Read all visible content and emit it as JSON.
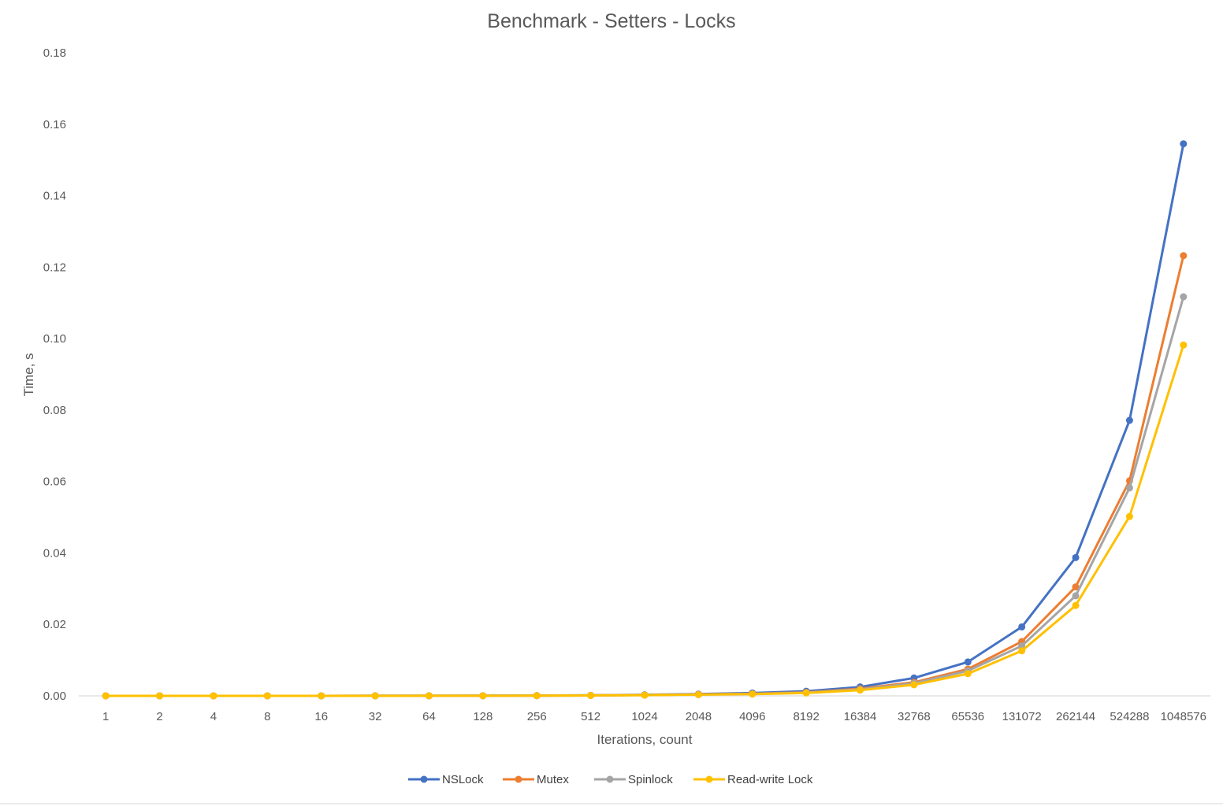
{
  "chart_data": {
    "type": "line",
    "title": "Benchmark - Setters - Locks",
    "xlabel": "Iterations, count",
    "ylabel": "Time, s",
    "ylim": [
      0,
      0.18
    ],
    "yticks": [
      "0.00",
      "0.02",
      "0.04",
      "0.06",
      "0.08",
      "0.10",
      "0.12",
      "0.14",
      "0.16",
      "0.18"
    ],
    "categories": [
      "1",
      "2",
      "4",
      "8",
      "16",
      "32",
      "64",
      "128",
      "256",
      "512",
      "1024",
      "2048",
      "4096",
      "8192",
      "16384",
      "32768",
      "65536",
      "131072",
      "262144",
      "524288",
      "1048576"
    ],
    "grid": "horizontal-baseline-only",
    "legend_position": "bottom",
    "series": [
      {
        "name": "NSLock",
        "color": "#4472C4",
        "values": [
          1e-05,
          1e-05,
          1e-05,
          1e-05,
          1e-05,
          2e-05,
          3e-05,
          4e-05,
          8e-05,
          0.00015,
          0.0003,
          0.0005,
          0.0008,
          0.0013,
          0.0025,
          0.005,
          0.0095,
          0.0193,
          0.0387,
          0.0771,
          0.1545
        ]
      },
      {
        "name": "Mutex",
        "color": "#ED7D31",
        "values": [
          1e-05,
          1e-05,
          1e-05,
          1e-05,
          1e-05,
          2e-05,
          2e-05,
          3e-05,
          6e-05,
          0.00012,
          0.00024,
          0.0004,
          0.0006,
          0.001,
          0.002,
          0.0038,
          0.0075,
          0.0152,
          0.0305,
          0.0602,
          0.1232
        ]
      },
      {
        "name": "Spinlock",
        "color": "#A5A5A5",
        "values": [
          1e-05,
          1e-05,
          1e-05,
          1e-05,
          1e-05,
          2e-05,
          2e-05,
          3e-05,
          5e-05,
          0.00011,
          0.00022,
          0.00038,
          0.00055,
          0.0009,
          0.0018,
          0.0035,
          0.007,
          0.014,
          0.028,
          0.0582,
          0.1117
        ]
      },
      {
        "name": "Read-write Lock",
        "color": "#FFC000",
        "values": [
          1e-05,
          1e-05,
          1e-05,
          1e-05,
          1e-05,
          1e-05,
          2e-05,
          3e-05,
          5e-05,
          0.0001,
          0.0002,
          0.00035,
          0.0005,
          0.0008,
          0.0016,
          0.0031,
          0.0062,
          0.0126,
          0.0253,
          0.0502,
          0.0982
        ]
      }
    ]
  }
}
